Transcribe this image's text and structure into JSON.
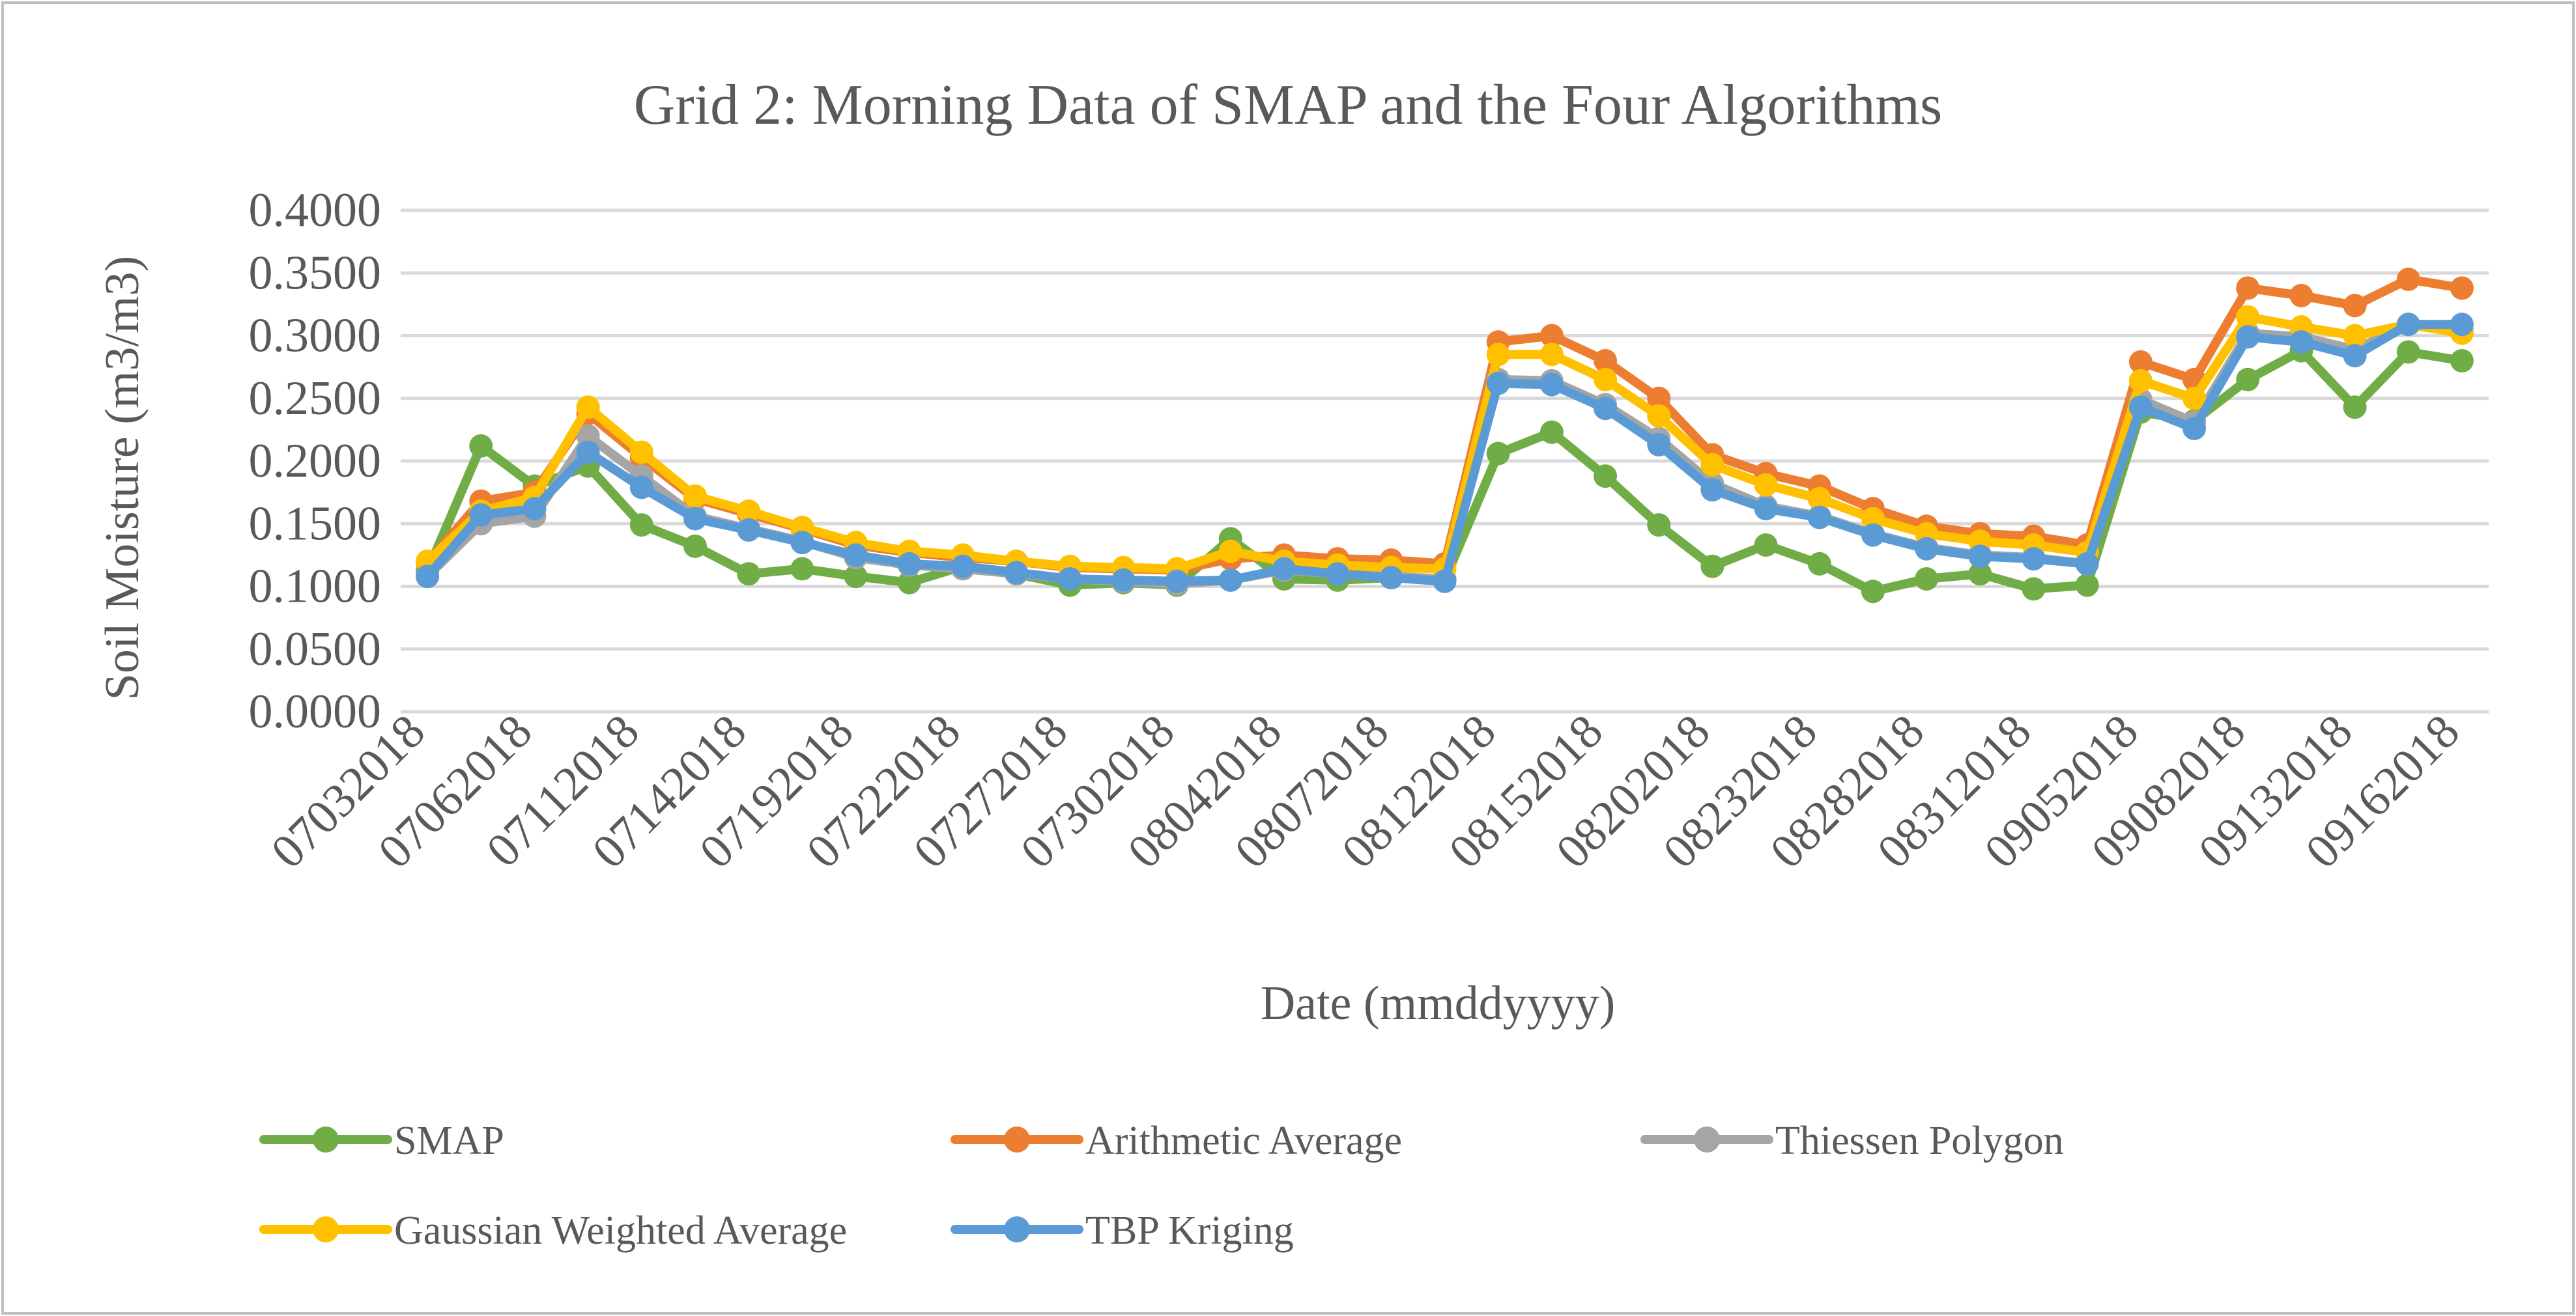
{
  "chart_data": {
    "type": "line",
    "title": "Grid 2: Morning Data of SMAP and the Four Algorithms",
    "xlabel": "Date (mmddyyyy)",
    "ylabel": "Soil Moisture (m3/m3)",
    "ylim": [
      0,
      0.4
    ],
    "yticks": [
      "0.0000",
      "0.0500",
      "0.1000",
      "0.1500",
      "0.2000",
      "0.2500",
      "0.3000",
      "0.3500",
      "0.4000"
    ],
    "grid": true,
    "legend_position": "bottom",
    "x_tick_labels": [
      {
        "index": 0,
        "label": "07032018"
      },
      {
        "index": 2,
        "label": "07062018"
      },
      {
        "index": 4,
        "label": "07112018"
      },
      {
        "index": 6,
        "label": "07142018"
      },
      {
        "index": 8,
        "label": "07192018"
      },
      {
        "index": 10,
        "label": "07222018"
      },
      {
        "index": 12,
        "label": "07272018"
      },
      {
        "index": 14,
        "label": "07302018"
      },
      {
        "index": 16,
        "label": "08042018"
      },
      {
        "index": 18,
        "label": "08072018"
      },
      {
        "index": 20,
        "label": "08122018"
      },
      {
        "index": 22,
        "label": "08152018"
      },
      {
        "index": 24,
        "label": "08202018"
      },
      {
        "index": 26,
        "label": "08232018"
      },
      {
        "index": 28,
        "label": "08282018"
      },
      {
        "index": 30,
        "label": "08312018"
      },
      {
        "index": 32,
        "label": "09052018"
      },
      {
        "index": 34,
        "label": "09082018"
      },
      {
        "index": 36,
        "label": "09132018"
      },
      {
        "index": 38,
        "label": "09162018"
      }
    ],
    "series": [
      {
        "name": "SMAP",
        "color": "#70ad47",
        "values": [
          0.112,
          0.212,
          0.18,
          0.196,
          0.149,
          0.132,
          0.11,
          0.114,
          0.108,
          0.103,
          0.116,
          0.11,
          0.101,
          0.103,
          0.101,
          0.138,
          0.106,
          0.105,
          0.107,
          0.105,
          0.206,
          0.223,
          0.188,
          0.149,
          0.116,
          0.133,
          0.118,
          0.096,
          0.106,
          0.11,
          0.098,
          0.101,
          0.239,
          0.232,
          0.265,
          0.288,
          0.243,
          0.287,
          0.28
        ]
      },
      {
        "name": "Arithmetic Average",
        "color": "#ed7d31",
        "values": [
          0.119,
          0.168,
          0.175,
          0.238,
          0.203,
          0.17,
          0.158,
          0.146,
          0.133,
          0.127,
          0.123,
          0.12,
          0.115,
          0.114,
          0.113,
          0.122,
          0.125,
          0.122,
          0.121,
          0.118,
          0.295,
          0.3,
          0.28,
          0.25,
          0.205,
          0.19,
          0.18,
          0.162,
          0.148,
          0.142,
          0.14,
          0.133,
          0.279,
          0.265,
          0.338,
          0.332,
          0.324,
          0.345,
          0.338
        ]
      },
      {
        "name": "Thiessen Polygon",
        "color": "#a5a5a5",
        "values": [
          0.108,
          0.15,
          0.156,
          0.22,
          0.188,
          0.156,
          0.146,
          0.136,
          0.123,
          0.117,
          0.114,
          0.11,
          0.106,
          0.104,
          0.102,
          0.105,
          0.113,
          0.11,
          0.108,
          0.106,
          0.265,
          0.264,
          0.245,
          0.218,
          0.182,
          0.164,
          0.156,
          0.142,
          0.131,
          0.125,
          0.123,
          0.118,
          0.249,
          0.231,
          0.302,
          0.299,
          0.289,
          0.309,
          0.304
        ]
      },
      {
        "name": "Gaussian Weighted Average",
        "color": "#ffc000",
        "values": [
          0.12,
          0.16,
          0.171,
          0.243,
          0.207,
          0.172,
          0.16,
          0.147,
          0.135,
          0.128,
          0.125,
          0.12,
          0.116,
          0.115,
          0.114,
          0.128,
          0.12,
          0.117,
          0.115,
          0.114,
          0.285,
          0.285,
          0.265,
          0.236,
          0.197,
          0.181,
          0.17,
          0.154,
          0.142,
          0.136,
          0.133,
          0.127,
          0.264,
          0.25,
          0.315,
          0.307,
          0.3,
          0.309,
          0.302
        ]
      },
      {
        "name": "TBP Kriging",
        "color": "#5b9bd5",
        "values": [
          0.108,
          0.157,
          0.162,
          0.207,
          0.179,
          0.154,
          0.145,
          0.135,
          0.125,
          0.118,
          0.116,
          0.111,
          0.106,
          0.105,
          0.104,
          0.105,
          0.114,
          0.11,
          0.107,
          0.104,
          0.262,
          0.261,
          0.242,
          0.213,
          0.177,
          0.162,
          0.155,
          0.141,
          0.13,
          0.124,
          0.122,
          0.118,
          0.243,
          0.226,
          0.299,
          0.295,
          0.284,
          0.309,
          0.309
        ]
      }
    ]
  }
}
